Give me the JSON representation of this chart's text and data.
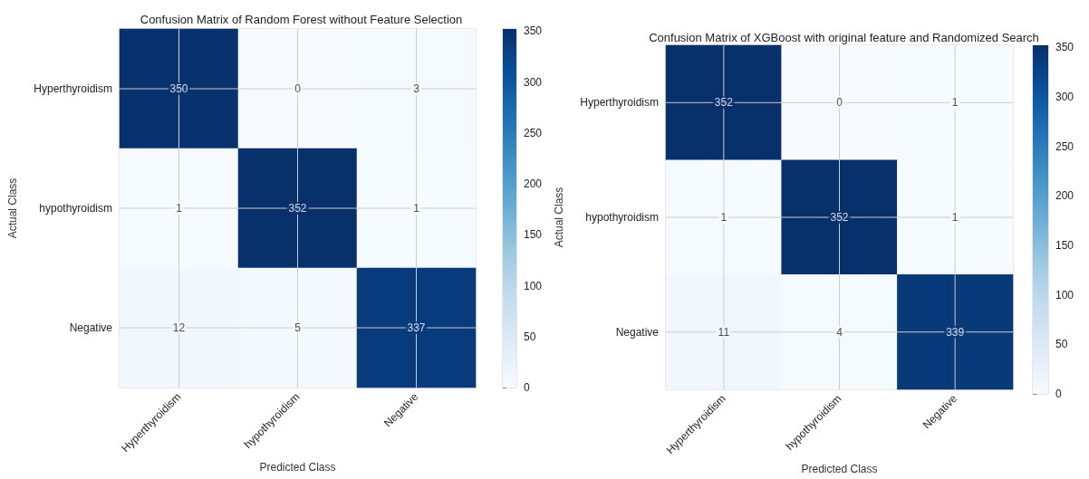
{
  "chart_data": [
    {
      "type": "heatmap",
      "title": "Confusion Matrix of Random Forest without Feature Selection",
      "xlabel": "Predicted Class",
      "ylabel": "Actual Class",
      "categories": [
        "Hyperthyroidism",
        "hypothyroidism",
        "Negative"
      ],
      "y_categories": [
        "Hyperthyroidism",
        "hypothyroidism",
        "Negative"
      ],
      "cells": [
        [
          350,
          0,
          3
        ],
        [
          1,
          352,
          1
        ],
        [
          12,
          5,
          337
        ]
      ],
      "clim": [
        0,
        352
      ],
      "cticks": [
        0,
        50,
        100,
        150,
        200,
        250,
        300,
        350
      ],
      "data_labels": true,
      "grid": true
    },
    {
      "type": "heatmap",
      "title": "Confusion Matrix of XGBoost with original feature and Randomized Search",
      "xlabel": "Predicted Class",
      "ylabel": "Actual Class",
      "categories": [
        "Hyperthyroidism",
        "hypothyroidism",
        "Negative"
      ],
      "y_categories": [
        "Hyperthyroidism",
        "hypothyroidism",
        "Negative"
      ],
      "cells": [
        [
          352,
          0,
          1
        ],
        [
          1,
          352,
          1
        ],
        [
          11,
          4,
          339
        ]
      ],
      "clim": [
        0,
        352
      ],
      "cticks": [
        0,
        50,
        100,
        150,
        200,
        250,
        300,
        350
      ],
      "data_labels": true,
      "grid": true
    }
  ]
}
